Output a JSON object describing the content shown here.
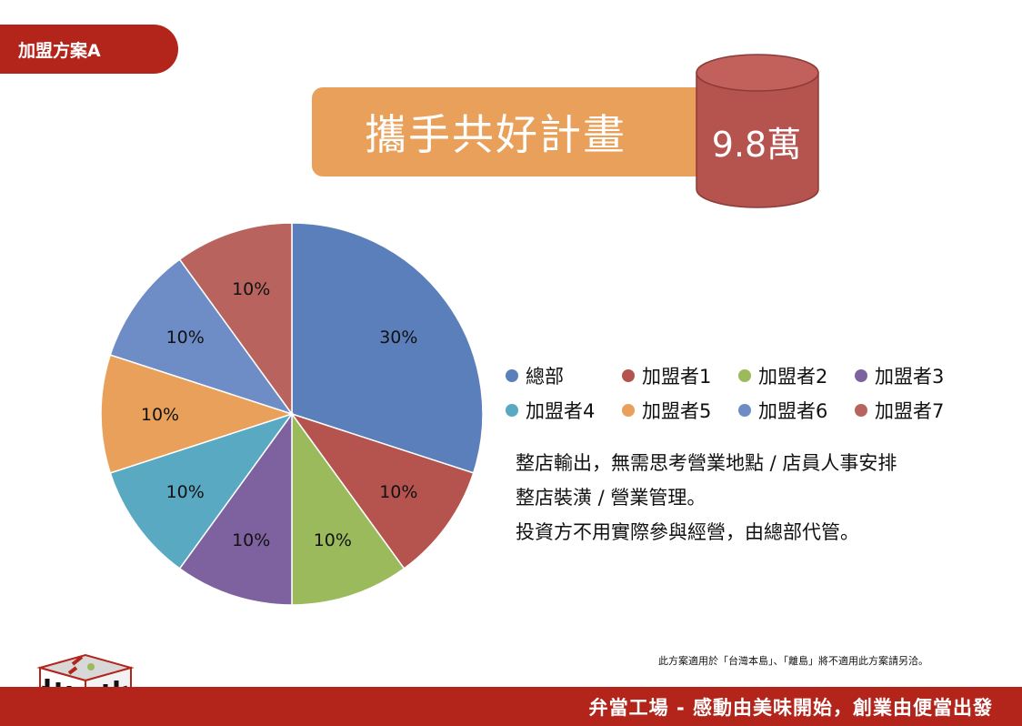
{
  "plan_tab": "加盟方案A",
  "plan_title": "攜手共好計畫",
  "price": "9.8萬",
  "colors": {
    "brand_red": "#b3241b",
    "title_orange": "#e9a05a",
    "barrel": "#b5534f"
  },
  "chart_data": {
    "type": "pie",
    "slices": [
      {
        "label": "總部",
        "value": 30,
        "display": "30%",
        "color": "#5a7fba"
      },
      {
        "label": "加盟者1",
        "value": 10,
        "display": "10%",
        "color": "#b5534f"
      },
      {
        "label": "加盟者2",
        "value": 10,
        "display": "10%",
        "color": "#9bba5c"
      },
      {
        "label": "加盟者3",
        "value": 10,
        "display": "10%",
        "color": "#7d629f"
      },
      {
        "label": "加盟者4",
        "value": 10,
        "display": "10%",
        "color": "#5aa9c2"
      },
      {
        "label": "加盟者5",
        "value": 10,
        "display": "10%",
        "color": "#e9a05a"
      },
      {
        "label": "加盟者6",
        "value": 10,
        "display": "10%",
        "color": "#6e8dc6"
      },
      {
        "label": "加盟者7",
        "value": 10,
        "display": "10%",
        "color": "#b8635e"
      }
    ],
    "legend_position": "right"
  },
  "description": [
    "整店輸出，無需思考營業地點 / 店員人事安排",
    "整店裝潢 / 營業管理。",
    "投資方不用實際參與經營，由總部代管。"
  ],
  "note": "此方案適用於「台灣本島」、「離島」將不適用此方案請另洽。",
  "footer": "弁當工場  -  感動由美味開始，創業由便當出發"
}
